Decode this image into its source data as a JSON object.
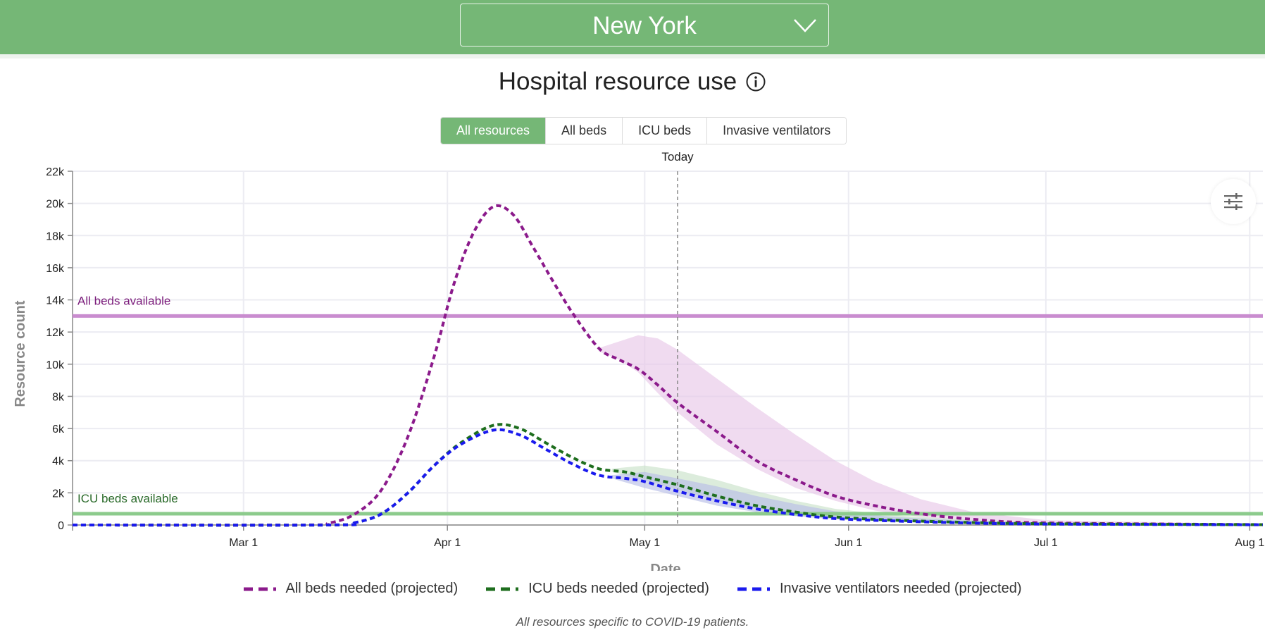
{
  "location": {
    "selected": "New York",
    "icon": "chevron-down-icon"
  },
  "heading": {
    "title": "Hospital resource use",
    "icon": "info-icon"
  },
  "tabs": [
    {
      "label": "All resources",
      "active": true
    },
    {
      "label": "All beds",
      "active": false
    },
    {
      "label": "ICU beds",
      "active": false
    },
    {
      "label": "Invasive ventilators",
      "active": false
    }
  ],
  "footnote": "All resources specific to COVID-19 patients.",
  "chart_data": {
    "type": "line",
    "xlabel": "Date",
    "ylabel": "Resource count",
    "x_range": [
      "2020-02-04",
      "2020-08-03"
    ],
    "ylim": [
      0,
      22000
    ],
    "x_ticks": [
      {
        "date": "2020-03-01",
        "label": "Mar 1"
      },
      {
        "date": "2020-04-01",
        "label": "Apr 1"
      },
      {
        "date": "2020-05-01",
        "label": "May 1"
      },
      {
        "date": "2020-06-01",
        "label": "Jun 1"
      },
      {
        "date": "2020-07-01",
        "label": "Jul 1"
      },
      {
        "date": "2020-08-01",
        "label": "Aug 1"
      }
    ],
    "y_ticks": [
      {
        "value": 0,
        "label": "0"
      },
      {
        "value": 2000,
        "label": "2k"
      },
      {
        "value": 4000,
        "label": "4k"
      },
      {
        "value": 6000,
        "label": "6k"
      },
      {
        "value": 8000,
        "label": "8k"
      },
      {
        "value": 10000,
        "label": "10k"
      },
      {
        "value": 12000,
        "label": "12k"
      },
      {
        "value": 14000,
        "label": "14k"
      },
      {
        "value": 16000,
        "label": "16k"
      },
      {
        "value": 18000,
        "label": "18k"
      },
      {
        "value": 20000,
        "label": "20k"
      },
      {
        "value": 22000,
        "label": "22k"
      }
    ],
    "grid": true,
    "today": {
      "date": "2020-05-06",
      "label": "Today"
    },
    "reference_lines": [
      {
        "label": "All beds available",
        "value": 13000,
        "color": "#c98ccf"
      },
      {
        "label": "ICU beds available",
        "value": 700,
        "color": "#8ccb8c"
      }
    ],
    "series": [
      {
        "name": "All beds needed (projected)",
        "color": "#8b1a8b",
        "band_color": "#e8c8e8",
        "points": [
          [
            "2020-02-04",
            0
          ],
          [
            "2020-03-10",
            0
          ],
          [
            "2020-03-14",
            120
          ],
          [
            "2020-03-18",
            700
          ],
          [
            "2020-03-22",
            2200
          ],
          [
            "2020-03-26",
            5500
          ],
          [
            "2020-03-30",
            10500
          ],
          [
            "2020-04-02",
            15000
          ],
          [
            "2020-04-05",
            18200
          ],
          [
            "2020-04-08",
            19800
          ],
          [
            "2020-04-11",
            19300
          ],
          [
            "2020-04-14",
            17300
          ],
          [
            "2020-04-17",
            15200
          ],
          [
            "2020-04-20",
            13200
          ],
          [
            "2020-04-24",
            11000
          ],
          [
            "2020-04-27",
            10300
          ],
          [
            "2020-04-30",
            9700
          ],
          [
            "2020-05-03",
            8700
          ],
          [
            "2020-05-06",
            7600
          ],
          [
            "2020-05-12",
            5800
          ],
          [
            "2020-05-18",
            4000
          ],
          [
            "2020-05-24",
            2800
          ],
          [
            "2020-05-30",
            1800
          ],
          [
            "2020-06-05",
            1200
          ],
          [
            "2020-06-12",
            700
          ],
          [
            "2020-06-20",
            350
          ],
          [
            "2020-07-01",
            130
          ],
          [
            "2020-08-03",
            20
          ]
        ],
        "band": [
          [
            "2020-04-24",
            10800,
            11000
          ],
          [
            "2020-04-27",
            10300,
            11400
          ],
          [
            "2020-04-30",
            9500,
            11800
          ],
          [
            "2020-05-03",
            8200,
            11600
          ],
          [
            "2020-05-06",
            7000,
            10900
          ],
          [
            "2020-05-12",
            5000,
            9100
          ],
          [
            "2020-05-18",
            3500,
            7300
          ],
          [
            "2020-05-24",
            2300,
            5600
          ],
          [
            "2020-05-30",
            1500,
            4000
          ],
          [
            "2020-06-05",
            900,
            2700
          ],
          [
            "2020-06-12",
            500,
            1600
          ],
          [
            "2020-06-20",
            250,
            800
          ],
          [
            "2020-07-01",
            90,
            300
          ],
          [
            "2020-08-03",
            10,
            60
          ]
        ]
      },
      {
        "name": "ICU beds needed (projected)",
        "color": "#1e6e1e",
        "band_color": "#c9e2c9",
        "points": [
          [
            "2020-02-04",
            0
          ],
          [
            "2020-03-14",
            0
          ],
          [
            "2020-03-18",
            150
          ],
          [
            "2020-03-22",
            700
          ],
          [
            "2020-03-26",
            2000
          ],
          [
            "2020-03-30",
            3700
          ],
          [
            "2020-04-03",
            5100
          ],
          [
            "2020-04-08",
            6200
          ],
          [
            "2020-04-12",
            6000
          ],
          [
            "2020-04-16",
            5100
          ],
          [
            "2020-04-20",
            4200
          ],
          [
            "2020-04-24",
            3500
          ],
          [
            "2020-04-28",
            3300
          ],
          [
            "2020-05-01",
            3000
          ],
          [
            "2020-05-06",
            2500
          ],
          [
            "2020-05-12",
            1800
          ],
          [
            "2020-05-18",
            1200
          ],
          [
            "2020-05-24",
            800
          ],
          [
            "2020-05-30",
            500
          ],
          [
            "2020-06-08",
            300
          ],
          [
            "2020-06-20",
            150
          ],
          [
            "2020-07-01",
            80
          ],
          [
            "2020-08-03",
            20
          ]
        ],
        "band": [
          [
            "2020-04-26",
            3300,
            3500
          ],
          [
            "2020-05-01",
            2800,
            3700
          ],
          [
            "2020-05-06",
            2200,
            3400
          ],
          [
            "2020-05-12",
            1500,
            2800
          ],
          [
            "2020-05-18",
            1000,
            2100
          ],
          [
            "2020-05-24",
            700,
            1500
          ],
          [
            "2020-05-30",
            450,
            1000
          ],
          [
            "2020-06-08",
            250,
            600
          ],
          [
            "2020-06-20",
            120,
            300
          ],
          [
            "2020-07-01",
            60,
            150
          ],
          [
            "2020-08-03",
            10,
            40
          ]
        ]
      },
      {
        "name": "Invasive ventilators needed (projected)",
        "color": "#1a1aee",
        "band_color": "#b9bfe6",
        "points": [
          [
            "2020-02-04",
            0
          ],
          [
            "2020-03-14",
            0
          ],
          [
            "2020-03-18",
            150
          ],
          [
            "2020-03-22",
            700
          ],
          [
            "2020-03-26",
            2000
          ],
          [
            "2020-03-30",
            3700
          ],
          [
            "2020-04-03",
            5000
          ],
          [
            "2020-04-08",
            5900
          ],
          [
            "2020-04-12",
            5600
          ],
          [
            "2020-04-16",
            4700
          ],
          [
            "2020-04-20",
            3800
          ],
          [
            "2020-04-24",
            3100
          ],
          [
            "2020-04-28",
            2900
          ],
          [
            "2020-05-01",
            2700
          ],
          [
            "2020-05-06",
            2100
          ],
          [
            "2020-05-12",
            1500
          ],
          [
            "2020-05-18",
            1000
          ],
          [
            "2020-05-24",
            650
          ],
          [
            "2020-05-30",
            400
          ],
          [
            "2020-06-08",
            250
          ],
          [
            "2020-06-20",
            120
          ],
          [
            "2020-07-01",
            60
          ],
          [
            "2020-08-03",
            15
          ]
        ],
        "band": [
          [
            "2020-04-26",
            2900,
            3100
          ],
          [
            "2020-05-01",
            2300,
            3300
          ],
          [
            "2020-05-06",
            1800,
            2900
          ],
          [
            "2020-05-12",
            1200,
            2400
          ],
          [
            "2020-05-18",
            800,
            1800
          ],
          [
            "2020-05-24",
            550,
            1300
          ],
          [
            "2020-05-30",
            350,
            850
          ],
          [
            "2020-06-08",
            200,
            500
          ],
          [
            "2020-06-20",
            100,
            250
          ],
          [
            "2020-07-01",
            50,
            120
          ],
          [
            "2020-08-03",
            10,
            35
          ]
        ]
      }
    ]
  }
}
